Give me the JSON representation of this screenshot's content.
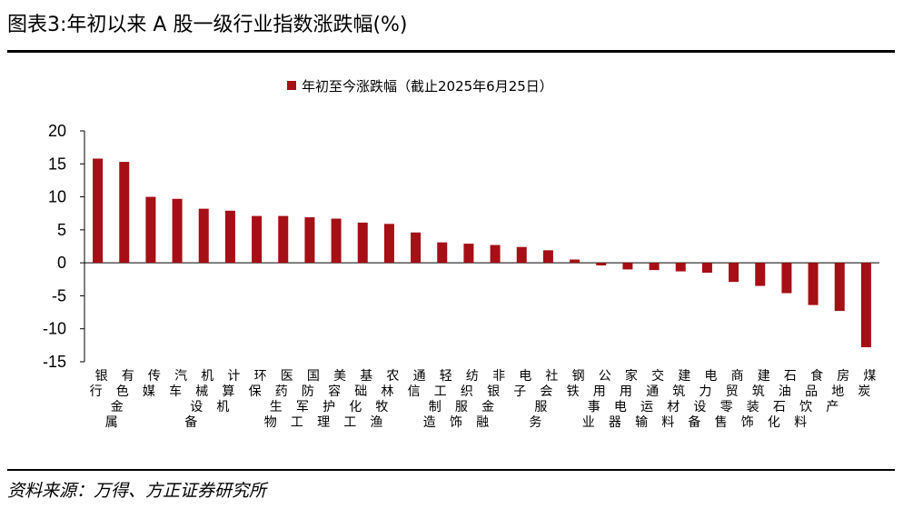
{
  "header": {
    "title": "图表3:年初以来 A 股一级行业指数涨跌幅(%)"
  },
  "footer": {
    "source": "资料来源：万得、方正证券研究所"
  },
  "colors": {
    "bar": "#a50f15",
    "axis": "#000000"
  },
  "chart_data": {
    "type": "bar",
    "title": "",
    "xlabel": "",
    "ylabel": "",
    "ylim": [
      -15,
      20
    ],
    "yticks": [
      "20",
      "15",
      "10",
      "5",
      "0",
      "-5",
      "-10",
      "-15"
    ],
    "legend_position": "top-center",
    "grid": false,
    "categories": [
      "银行",
      "有色金属",
      "传媒",
      "汽车",
      "机械设备",
      "计算机",
      "环保",
      "医药生物",
      "国防军工",
      "美容护理",
      "基础化工",
      "农林牧渔",
      "通信",
      "轻工制造",
      "纺织服饰",
      "非银金融",
      "电子",
      "社会服务",
      "钢铁",
      "公用事业",
      "家用电器",
      "交通运输",
      "建筑材料",
      "电力设备",
      "商贸零售",
      "建筑装饰",
      "石油石化",
      "食品饮料",
      "房地产",
      "煤炭"
    ],
    "series": [
      {
        "name": "年初至今涨跌幅（截止2025年6月25日）",
        "values": [
          15.8,
          15.3,
          10.0,
          9.7,
          8.2,
          7.9,
          7.1,
          7.1,
          6.9,
          6.7,
          6.1,
          5.9,
          4.6,
          3.1,
          2.9,
          2.7,
          2.4,
          1.9,
          0.5,
          -0.4,
          -1.0,
          -1.1,
          -1.3,
          -1.5,
          -2.9,
          -3.5,
          -4.6,
          -6.4,
          -7.3,
          -12.8
        ]
      }
    ]
  }
}
